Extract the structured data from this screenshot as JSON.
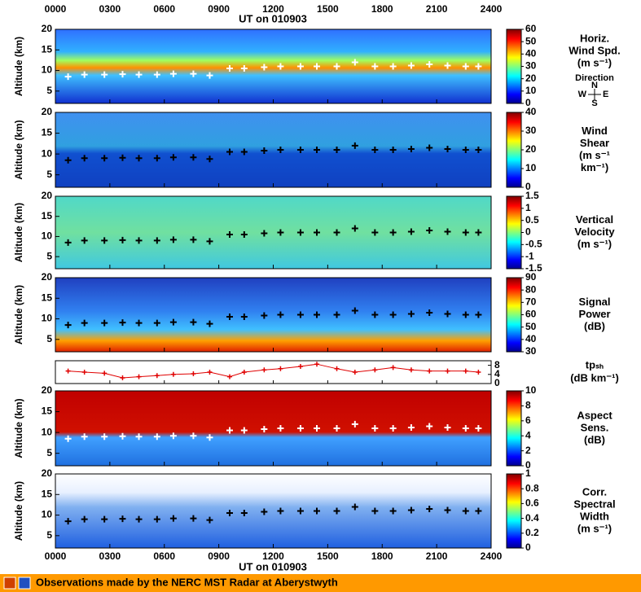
{
  "chart_data": {
    "type": "heatmap-panels",
    "title": "UT on 010903",
    "xlim": [
      0,
      24
    ],
    "xticks": [
      {
        "value": 0,
        "label": "0000"
      },
      {
        "value": 3,
        "label": "0300"
      },
      {
        "value": 6,
        "label": "0600"
      },
      {
        "value": 9,
        "label": "0900"
      },
      {
        "value": 12,
        "label": "1200"
      },
      {
        "value": 15,
        "label": "1500"
      },
      {
        "value": 18,
        "label": "1800"
      },
      {
        "value": 21,
        "label": "2100"
      },
      {
        "value": 24,
        "label": "2400"
      }
    ],
    "x": [
      0.7,
      1.6,
      2.7,
      3.7,
      4.6,
      5.6,
      6.5,
      7.6,
      8.5,
      9.6,
      10.4,
      11.5,
      12.4,
      13.5,
      14.4,
      15.5,
      16.5,
      17.6,
      18.6,
      19.6,
      20.6,
      21.6,
      22.6,
      23.3
    ],
    "tropopause": [
      8.5,
      9,
      9,
      9.1,
      9,
      9,
      9.2,
      9.2,
      8.8,
      10.5,
      10.5,
      10.8,
      11,
      11,
      11,
      11,
      12,
      11,
      11,
      11.2,
      11.5,
      11.2,
      11,
      11
    ],
    "panels": [
      {
        "type": "heatmap",
        "ylabel": "Altitude (km)",
        "ylim": [
          2,
          20
        ],
        "yticks": [
          5,
          10,
          15,
          20
        ],
        "overlay_color": "#ffffff",
        "colorbar": {
          "lim": [
            0,
            60
          ],
          "ticks": [
            0,
            10,
            20,
            30,
            40,
            50,
            60
          ],
          "label": [
            "Horiz.",
            "Wind Spd.",
            "(m s⁻¹)"
          ],
          "compass": {
            "title": "Direction",
            "n": "N",
            "w": "W",
            "e": "E",
            "s": "S"
          }
        }
      },
      {
        "type": "heatmap",
        "ylabel": "Altitude (km)",
        "ylim": [
          2,
          20
        ],
        "yticks": [
          5,
          10,
          15,
          20
        ],
        "overlay_color": "#000000",
        "colorbar": {
          "lim": [
            0,
            40
          ],
          "ticks": [
            0,
            10,
            20,
            30,
            40
          ],
          "label": [
            "Wind",
            "Shear",
            "(m s⁻¹",
            "km⁻¹)"
          ]
        }
      },
      {
        "type": "heatmap",
        "ylabel": "Altitude (km)",
        "ylim": [
          2,
          20
        ],
        "yticks": [
          5,
          10,
          15,
          20
        ],
        "overlay_color": "#000000",
        "colorbar": {
          "lim": [
            -1.5,
            1.5
          ],
          "ticks": [
            -1.5,
            -1,
            -0.5,
            0,
            0.5,
            1,
            1.5
          ],
          "label": [
            "Vertical",
            "Velocity",
            "(m s⁻¹)"
          ]
        }
      },
      {
        "type": "heatmap",
        "ylabel": "Altitude (km)",
        "ylim": [
          2,
          20
        ],
        "yticks": [
          5,
          10,
          15,
          20
        ],
        "overlay_color": "#000000",
        "colorbar": {
          "lim": [
            30,
            90
          ],
          "ticks": [
            30,
            40,
            50,
            60,
            70,
            80,
            90
          ],
          "label": [
            "Signal",
            "Power",
            "(dB)"
          ]
        }
      },
      {
        "type": "line",
        "ylim": [
          0,
          10
        ],
        "yticks": [
          0,
          4,
          8
        ],
        "color": "#e00000",
        "values": [
          5.5,
          5,
          4.5,
          2.5,
          3,
          3.5,
          4,
          4.3,
          5,
          3,
          5,
          6,
          6.5,
          7.5,
          8.5,
          6.5,
          5,
          6,
          7,
          6,
          5.5,
          5.5,
          5.5,
          5
        ],
        "label": [
          "tpₛₕ",
          "(dB km⁻¹)"
        ]
      },
      {
        "type": "heatmap",
        "ylabel": "Altitude (km)",
        "ylim": [
          2,
          20
        ],
        "yticks": [
          5,
          10,
          15,
          20
        ],
        "overlay_color": "#ffffff",
        "colorbar": {
          "lim": [
            0,
            10
          ],
          "ticks": [
            0,
            2,
            4,
            6,
            8,
            10
          ],
          "label": [
            "Aspect",
            "Sens.",
            "(dB)"
          ]
        }
      },
      {
        "type": "heatmap",
        "ylabel": "Altitude (km)",
        "ylim": [
          2,
          20
        ],
        "yticks": [
          5,
          10,
          15,
          20
        ],
        "overlay_color": "#000000",
        "colorbar": {
          "lim": [
            0,
            1
          ],
          "ticks": [
            0,
            0.2,
            0.4,
            0.6,
            0.8,
            1
          ],
          "label": [
            "Corr.",
            "Spectral",
            "Width",
            "(m s⁻¹)"
          ]
        }
      }
    ],
    "footer": "Observations made by the NERC MST Radar at Aberystwyth"
  }
}
